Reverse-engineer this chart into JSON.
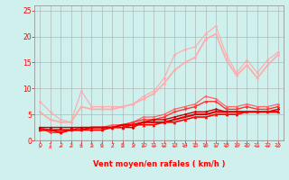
{
  "xlabel": "Vent moyen/en rafales ( km/h )",
  "bg_color": "#cff0ec",
  "grid_color": "#aaaaaa",
  "xlim": [
    -0.5,
    23.5
  ],
  "ylim": [
    0,
    26
  ],
  "yticks": [
    0,
    5,
    10,
    15,
    20,
    25
  ],
  "xticks": [
    0,
    1,
    2,
    3,
    4,
    5,
    6,
    7,
    8,
    9,
    10,
    11,
    12,
    13,
    14,
    15,
    16,
    17,
    18,
    19,
    20,
    21,
    22,
    23
  ],
  "lines": [
    {
      "x": [
        0,
        1,
        2,
        3,
        4,
        5,
        6,
        7,
        8,
        9,
        10,
        11,
        12,
        13,
        14,
        15,
        16,
        17,
        18,
        19,
        20,
        21,
        22,
        23
      ],
      "y": [
        7.5,
        5.5,
        4.0,
        3.5,
        9.5,
        6.5,
        6.5,
        6.5,
        6.5,
        7.0,
        8.5,
        9.5,
        12.0,
        16.5,
        17.5,
        18.0,
        20.5,
        22.0,
        16.5,
        13.0,
        15.5,
        13.0,
        15.5,
        17.0
      ],
      "color": "#ffaaaa",
      "lw": 0.8,
      "marker": "D",
      "ms": 1.8,
      "zorder": 2
    },
    {
      "x": [
        0,
        1,
        2,
        3,
        4,
        5,
        6,
        7,
        8,
        9,
        10,
        11,
        12,
        13,
        14,
        15,
        16,
        17,
        18,
        19,
        20,
        21,
        22,
        23
      ],
      "y": [
        5.5,
        4.0,
        3.5,
        3.5,
        6.5,
        6.0,
        6.0,
        6.0,
        6.5,
        7.0,
        8.0,
        9.0,
        11.0,
        13.5,
        15.0,
        16.0,
        19.5,
        20.5,
        15.5,
        12.5,
        14.5,
        12.0,
        14.5,
        16.5
      ],
      "color": "#ffaaaa",
      "lw": 1.2,
      "marker": "D",
      "ms": 1.8,
      "zorder": 2
    },
    {
      "x": [
        0,
        1,
        2,
        3,
        4,
        5,
        6,
        7,
        8,
        9,
        10,
        11,
        12,
        13,
        14,
        15,
        16,
        17,
        18,
        19,
        20,
        21,
        22,
        23
      ],
      "y": [
        2.5,
        2.0,
        1.5,
        2.0,
        2.5,
        2.5,
        2.5,
        3.0,
        3.0,
        3.5,
        4.5,
        4.5,
        5.0,
        6.0,
        6.5,
        7.0,
        8.5,
        8.0,
        6.5,
        6.5,
        7.0,
        6.5,
        6.5,
        7.0
      ],
      "color": "#ff6666",
      "lw": 0.9,
      "marker": "D",
      "ms": 1.8,
      "zorder": 3
    },
    {
      "x": [
        0,
        1,
        2,
        3,
        4,
        5,
        6,
        7,
        8,
        9,
        10,
        11,
        12,
        13,
        14,
        15,
        16,
        17,
        18,
        19,
        20,
        21,
        22,
        23
      ],
      "y": [
        2.5,
        1.5,
        1.5,
        2.0,
        2.5,
        2.5,
        2.5,
        2.5,
        3.0,
        3.5,
        4.0,
        4.0,
        4.5,
        5.5,
        6.0,
        6.5,
        7.5,
        7.5,
        6.0,
        6.0,
        6.5,
        6.0,
        6.0,
        6.5
      ],
      "color": "#ff3333",
      "lw": 1.0,
      "marker": "D",
      "ms": 1.8,
      "zorder": 3
    },
    {
      "x": [
        0,
        1,
        2,
        3,
        4,
        5,
        6,
        7,
        8,
        9,
        10,
        11,
        12,
        13,
        14,
        15,
        16,
        17,
        18,
        19,
        20,
        21,
        22,
        23
      ],
      "y": [
        2.5,
        2.5,
        2.5,
        2.5,
        2.5,
        2.5,
        2.5,
        2.5,
        2.5,
        2.5,
        3.5,
        4.0,
        4.0,
        4.5,
        5.0,
        5.5,
        5.5,
        6.0,
        5.5,
        5.5,
        5.5,
        5.5,
        5.5,
        6.0
      ],
      "color": "#cc0000",
      "lw": 1.0,
      "marker": "D",
      "ms": 1.8,
      "zorder": 3
    },
    {
      "x": [
        0,
        1,
        2,
        3,
        4,
        5,
        6,
        7,
        8,
        9,
        10,
        11,
        12,
        13,
        14,
        15,
        16,
        17,
        18,
        19,
        20,
        21,
        22,
        23
      ],
      "y": [
        2.0,
        2.0,
        2.0,
        2.0,
        2.0,
        2.5,
        2.5,
        2.5,
        3.0,
        3.0,
        3.5,
        3.5,
        3.5,
        4.0,
        4.5,
        5.0,
        5.0,
        5.5,
        5.5,
        5.5,
        5.5,
        5.5,
        5.5,
        5.5
      ],
      "color": "#dd0000",
      "lw": 1.5,
      "marker": "s",
      "ms": 2.0,
      "zorder": 4
    },
    {
      "x": [
        0,
        1,
        2,
        3,
        4,
        5,
        6,
        7,
        8,
        9,
        10,
        11,
        12,
        13,
        14,
        15,
        16,
        17,
        18,
        19,
        20,
        21,
        22,
        23
      ],
      "y": [
        2.0,
        2.0,
        1.5,
        2.0,
        2.0,
        2.0,
        2.0,
        2.5,
        2.5,
        3.0,
        3.0,
        3.0,
        3.5,
        3.5,
        4.0,
        4.5,
        4.5,
        5.0,
        5.0,
        5.0,
        5.5,
        5.5,
        5.5,
        5.5
      ],
      "color": "#ff0000",
      "lw": 1.2,
      "marker": "^",
      "ms": 2.5,
      "zorder": 4
    }
  ],
  "arrow_angles_deg": [
    90,
    0,
    225,
    225,
    225,
    225,
    225,
    225,
    225,
    225,
    225,
    225,
    225,
    225,
    225,
    225,
    225,
    225,
    225,
    225,
    225,
    225,
    225,
    225
  ],
  "arrow_color": "#ff5555",
  "axhline_color": "#ff0000",
  "tick_color": "#ff0000",
  "xlabel_color": "#ff0000",
  "xlabel_fontsize": 6.0,
  "ytick_fontsize": 5.5,
  "xtick_fontsize": 4.5
}
